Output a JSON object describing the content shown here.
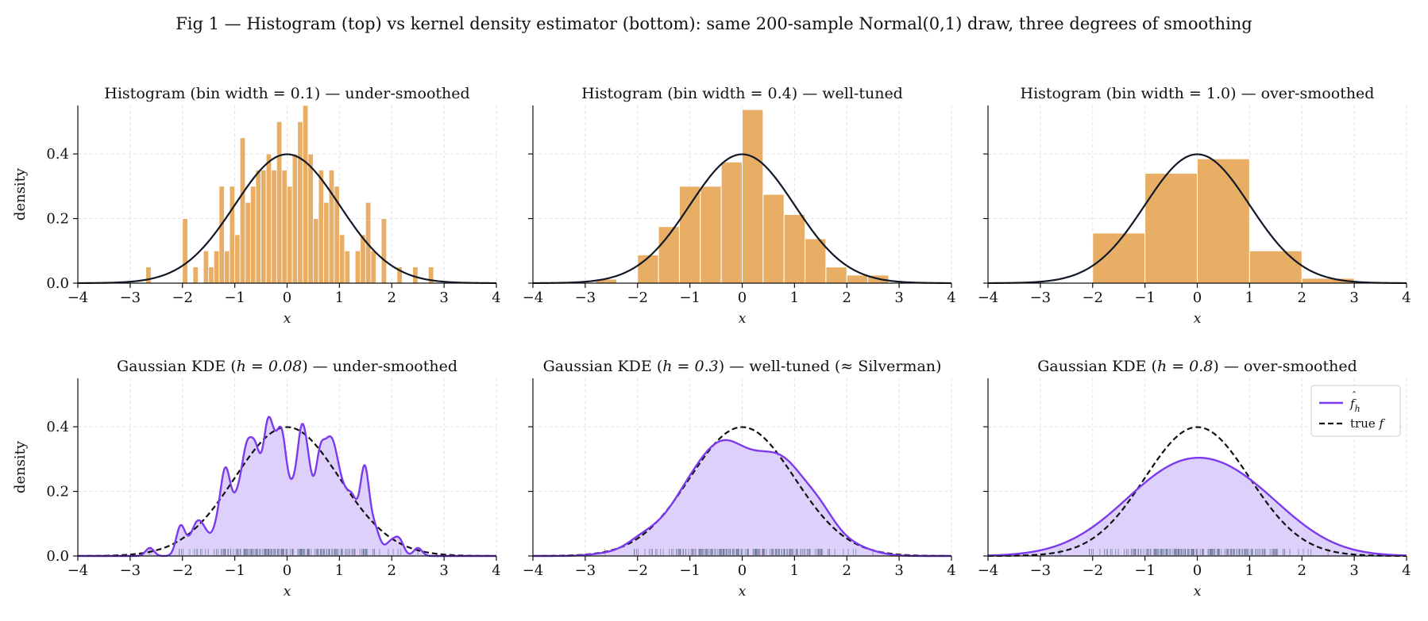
{
  "figure": {
    "title": "Fig 1 — Histogram (top) vs kernel density estimator (bottom): same 200-sample Normal(0,1) draw, three degrees of smoothing"
  },
  "colors": {
    "histogram_fill": "#E8AE66",
    "histogram_edge": "#FFFFFF",
    "true_density_hist": "#111827",
    "kde_line": "#7C3AED",
    "kde_fill": "#DDD0FA",
    "true_density_kde": "#111111",
    "rug": "#6B7A93",
    "grid": "#E2E2E2"
  },
  "chart_data": [
    {
      "type": "bar",
      "panel": "histogram",
      "title": "Histogram (bin width = 0.1) — under-smoothed",
      "xlabel": "x",
      "ylabel": "density",
      "xlim": [
        -4,
        4
      ],
      "ylim": [
        0,
        0.55
      ],
      "xticks": [
        -4,
        -3,
        -2,
        -1,
        0,
        1,
        2,
        3,
        4
      ],
      "yticks": [
        0.0,
        0.2,
        0.4
      ],
      "grid": true,
      "bin_width": 0.1,
      "bins": [
        {
          "x": -2.7,
          "y": 0.05
        },
        {
          "x": -2.0,
          "y": 0.2
        },
        {
          "x": -1.8,
          "y": 0.05
        },
        {
          "x": -1.6,
          "y": 0.1
        },
        {
          "x": -1.5,
          "y": 0.05
        },
        {
          "x": -1.4,
          "y": 0.1
        },
        {
          "x": -1.3,
          "y": 0.3
        },
        {
          "x": -1.2,
          "y": 0.1
        },
        {
          "x": -1.1,
          "y": 0.3
        },
        {
          "x": -1.0,
          "y": 0.15
        },
        {
          "x": -0.9,
          "y": 0.45
        },
        {
          "x": -0.8,
          "y": 0.25
        },
        {
          "x": -0.7,
          "y": 0.3
        },
        {
          "x": -0.6,
          "y": 0.35
        },
        {
          "x": -0.5,
          "y": 0.35
        },
        {
          "x": -0.4,
          "y": 0.4
        },
        {
          "x": -0.3,
          "y": 0.35
        },
        {
          "x": -0.2,
          "y": 0.5
        },
        {
          "x": -0.1,
          "y": 0.35
        },
        {
          "x": 0.0,
          "y": 0.3
        },
        {
          "x": 0.1,
          "y": 0.4
        },
        {
          "x": 0.2,
          "y": 0.5
        },
        {
          "x": 0.3,
          "y": 0.55
        },
        {
          "x": 0.4,
          "y": 0.4
        },
        {
          "x": 0.5,
          "y": 0.2
        },
        {
          "x": 0.6,
          "y": 0.35
        },
        {
          "x": 0.7,
          "y": 0.25
        },
        {
          "x": 0.8,
          "y": 0.35
        },
        {
          "x": 0.9,
          "y": 0.3
        },
        {
          "x": 1.0,
          "y": 0.15
        },
        {
          "x": 1.1,
          "y": 0.1
        },
        {
          "x": 1.3,
          "y": 0.1
        },
        {
          "x": 1.4,
          "y": 0.15
        },
        {
          "x": 1.5,
          "y": 0.25
        },
        {
          "x": 1.6,
          "y": 0.1
        },
        {
          "x": 1.8,
          "y": 0.2
        },
        {
          "x": 2.1,
          "y": 0.05
        },
        {
          "x": 2.4,
          "y": 0.05
        },
        {
          "x": 2.7,
          "y": 0.05
        }
      ]
    },
    {
      "type": "bar",
      "panel": "histogram",
      "title": "Histogram (bin width = 0.4) — well-tuned",
      "xlabel": "x",
      "ylabel": "",
      "xlim": [
        -4,
        4
      ],
      "ylim": [
        0,
        0.55
      ],
      "xticks": [
        -4,
        -3,
        -2,
        -1,
        0,
        1,
        2,
        3,
        4
      ],
      "yticks": [
        0.0,
        0.2,
        0.4
      ],
      "grid": true,
      "bin_width": 0.4,
      "bins": [
        {
          "x": -2.8,
          "y": 0.0125
        },
        {
          "x": -2.0,
          "y": 0.0875
        },
        {
          "x": -1.6,
          "y": 0.175
        },
        {
          "x": -1.2,
          "y": 0.3
        },
        {
          "x": -0.8,
          "y": 0.3
        },
        {
          "x": -0.4,
          "y": 0.375
        },
        {
          "x": 0.0,
          "y": 0.5375
        },
        {
          "x": 0.4,
          "y": 0.275
        },
        {
          "x": 0.8,
          "y": 0.2125
        },
        {
          "x": 1.2,
          "y": 0.1375
        },
        {
          "x": 1.6,
          "y": 0.05
        },
        {
          "x": 2.0,
          "y": 0.025
        },
        {
          "x": 2.4,
          "y": 0.025
        }
      ]
    },
    {
      "type": "bar",
      "panel": "histogram",
      "title": "Histogram (bin width = 1.0) — over-smoothed",
      "xlabel": "x",
      "ylabel": "",
      "xlim": [
        -4,
        4
      ],
      "ylim": [
        0,
        0.55
      ],
      "xticks": [
        -4,
        -3,
        -2,
        -1,
        0,
        1,
        2,
        3,
        4
      ],
      "yticks": [
        0.0,
        0.2,
        0.4
      ],
      "grid": true,
      "bin_width": 1.0,
      "bins": [
        {
          "x": -2.0,
          "y": 0.155
        },
        {
          "x": -1.0,
          "y": 0.34
        },
        {
          "x": 0.0,
          "y": 0.385
        },
        {
          "x": 1.0,
          "y": 0.1
        },
        {
          "x": 2.0,
          "y": 0.015
        }
      ]
    },
    {
      "type": "area",
      "panel": "kde",
      "title_prefix": "Gaussian KDE (",
      "title_h": "h = 0.08",
      "title_suffix": ") — under-smoothed",
      "bandwidth": 0.08,
      "xlabel": "x",
      "ylabel": "density",
      "xlim": [
        -4,
        4
      ],
      "ylim": [
        0,
        0.55
      ],
      "xticks": [
        -4,
        -3,
        -2,
        -1,
        0,
        1,
        2,
        3,
        4
      ],
      "yticks": [
        0.0,
        0.2,
        0.4
      ],
      "grid": true,
      "legend": null
    },
    {
      "type": "area",
      "panel": "kde",
      "title_prefix": "Gaussian KDE (",
      "title_h": "h = 0.3",
      "title_suffix": ") — well-tuned (≈ Silverman)",
      "bandwidth": 0.3,
      "xlabel": "x",
      "ylabel": "",
      "xlim": [
        -4,
        4
      ],
      "ylim": [
        0,
        0.55
      ],
      "xticks": [
        -4,
        -3,
        -2,
        -1,
        0,
        1,
        2,
        3,
        4
      ],
      "yticks": [
        0.0,
        0.2,
        0.4
      ],
      "grid": true,
      "legend": null
    },
    {
      "type": "area",
      "panel": "kde",
      "title_prefix": "Gaussian KDE (",
      "title_h": "h = 0.8",
      "title_suffix": ") — over-smoothed",
      "bandwidth": 0.8,
      "xlabel": "x",
      "ylabel": "",
      "xlim": [
        -4,
        4
      ],
      "ylim": [
        0,
        0.55
      ],
      "xticks": [
        -4,
        -3,
        -2,
        -1,
        0,
        1,
        2,
        3,
        4
      ],
      "yticks": [
        0.0,
        0.2,
        0.4
      ],
      "grid": true,
      "legend": {
        "placement": "upper-right",
        "entries": [
          {
            "label_main": "f",
            "label_sub": "h",
            "label_hat": true,
            "style": "solid"
          },
          {
            "label": "true ",
            "label_italic": "f",
            "style": "dashed"
          }
        ]
      }
    }
  ]
}
